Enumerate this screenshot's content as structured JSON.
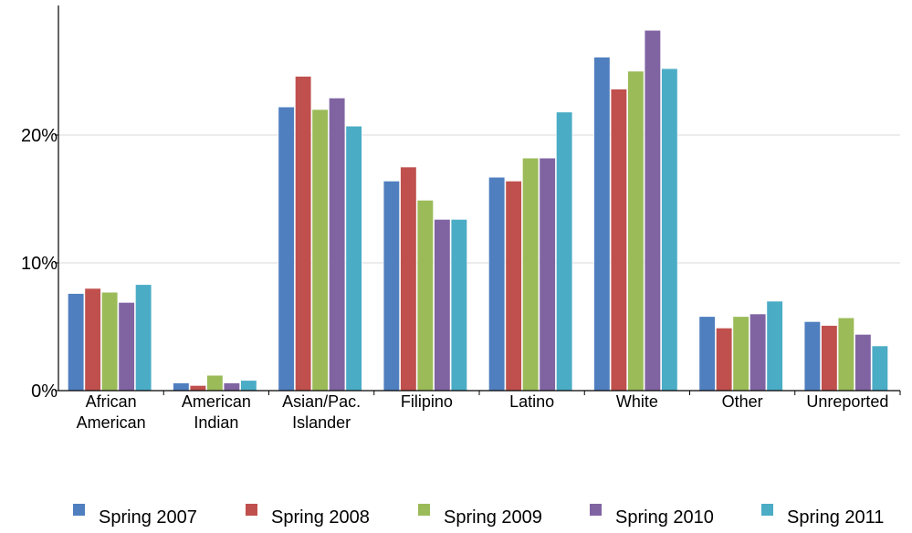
{
  "chart_data": {
    "type": "bar",
    "categories": [
      [
        "African",
        "American"
      ],
      [
        "American",
        "Indian"
      ],
      [
        "Asian/Pac.",
        "Islander"
      ],
      [
        "Filipino"
      ],
      [
        "Latino"
      ],
      [
        "White"
      ],
      [
        "Other"
      ],
      [
        "Unreported"
      ]
    ],
    "series": [
      {
        "name": "Spring 2007",
        "color": "#4f7fbf",
        "values": [
          7.6,
          0.6,
          22.2,
          16.4,
          16.7,
          26.1,
          5.8,
          5.4
        ]
      },
      {
        "name": "Spring 2008",
        "color": "#c0504d",
        "values": [
          8.0,
          0.4,
          24.6,
          17.5,
          16.4,
          23.6,
          4.9,
          5.1
        ]
      },
      {
        "name": "Spring 2009",
        "color": "#9bbb59",
        "values": [
          7.7,
          1.2,
          22.0,
          14.9,
          18.2,
          25.0,
          5.8,
          5.7
        ]
      },
      {
        "name": "Spring 2010",
        "color": "#8064a2",
        "values": [
          6.9,
          0.6,
          22.9,
          13.4,
          18.2,
          28.2,
          6.0,
          4.4
        ]
      },
      {
        "name": "Spring 2011",
        "color": "#4bacc6",
        "values": [
          8.3,
          0.8,
          20.7,
          13.4,
          21.8,
          25.2,
          7.0,
          3.5
        ]
      }
    ],
    "yticks": [
      {
        "value": 0,
        "label": "0%"
      },
      {
        "value": 10,
        "label": "10%"
      },
      {
        "value": 20,
        "label": "20%"
      }
    ],
    "ylim": [
      0,
      30
    ],
    "grid": true,
    "legend_position": "bottom",
    "title": "",
    "xlabel": "",
    "ylabel": ""
  }
}
